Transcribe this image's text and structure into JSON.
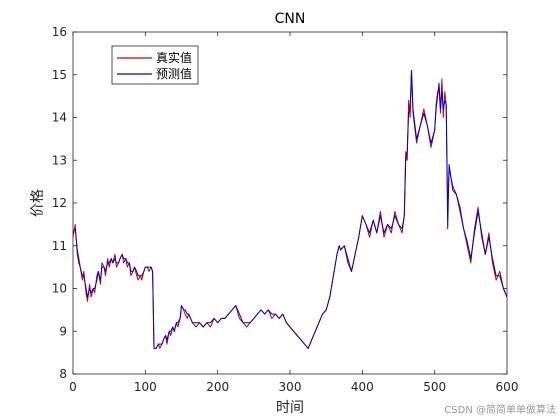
{
  "chart_data": {
    "type": "line",
    "title": "CNN",
    "xlabel": "时间",
    "ylabel": "价格",
    "xlim": [
      0,
      600
    ],
    "ylim": [
      8,
      16
    ],
    "xticks": [
      0,
      100,
      200,
      300,
      400,
      500,
      600
    ],
    "yticks": [
      8,
      9,
      10,
      11,
      12,
      13,
      14,
      15,
      16
    ],
    "grid": false,
    "legend_position": "top-left",
    "series": [
      {
        "name": "真实值",
        "color": "#c00000",
        "x": [
          0,
          3,
          6,
          8,
          10,
          13,
          15,
          18,
          20,
          23,
          25,
          28,
          30,
          33,
          35,
          38,
          40,
          43,
          45,
          48,
          50,
          53,
          55,
          58,
          60,
          63,
          65,
          68,
          70,
          73,
          75,
          78,
          80,
          83,
          85,
          88,
          90,
          93,
          95,
          98,
          100,
          103,
          105,
          108,
          110,
          112,
          115,
          118,
          120,
          123,
          125,
          128,
          130,
          133,
          135,
          138,
          140,
          143,
          145,
          148,
          150,
          153,
          155,
          158,
          160,
          165,
          170,
          175,
          180,
          185,
          190,
          195,
          200,
          205,
          210,
          215,
          220,
          225,
          230,
          235,
          240,
          245,
          250,
          255,
          260,
          265,
          270,
          275,
          280,
          285,
          290,
          295,
          300,
          305,
          310,
          315,
          320,
          325,
          330,
          335,
          340,
          345,
          350,
          355,
          360,
          365,
          368,
          370,
          375,
          380,
          385,
          390,
          395,
          400,
          405,
          410,
          415,
          420,
          425,
          430,
          435,
          440,
          445,
          450,
          455,
          458,
          460,
          462,
          464,
          466,
          468,
          470,
          475,
          480,
          485,
          490,
          495,
          500,
          502,
          504,
          506,
          508,
          510,
          512,
          514,
          516,
          518,
          520,
          525,
          530,
          535,
          540,
          545,
          550,
          555,
          560,
          565,
          570,
          575,
          580,
          585,
          590,
          595,
          600
        ],
        "values": [
          11.2,
          11.5,
          10.8,
          10.6,
          10.5,
          10.2,
          10.4,
          9.9,
          9.7,
          10.1,
          9.8,
          10.0,
          9.9,
          10.3,
          10.4,
          10.1,
          10.6,
          10.5,
          10.3,
          10.7,
          10.5,
          10.7,
          10.6,
          10.8,
          10.5,
          10.6,
          10.7,
          10.8,
          10.6,
          10.7,
          10.5,
          10.6,
          10.3,
          10.4,
          10.5,
          10.3,
          10.2,
          10.3,
          10.2,
          10.4,
          10.5,
          10.5,
          10.4,
          10.5,
          10.4,
          8.6,
          8.6,
          8.7,
          8.6,
          8.7,
          8.8,
          8.9,
          8.7,
          9.0,
          8.9,
          9.1,
          9.0,
          9.2,
          9.1,
          9.3,
          9.6,
          9.5,
          9.4,
          9.3,
          9.4,
          9.2,
          9.1,
          9.2,
          9.1,
          9.2,
          9.1,
          9.3,
          9.2,
          9.3,
          9.3,
          9.4,
          9.5,
          9.6,
          9.3,
          9.2,
          9.1,
          9.2,
          9.3,
          9.4,
          9.5,
          9.4,
          9.5,
          9.3,
          9.4,
          9.3,
          9.4,
          9.2,
          9.1,
          9.0,
          8.9,
          8.8,
          8.7,
          8.6,
          8.8,
          9.0,
          9.2,
          9.4,
          9.5,
          9.8,
          10.3,
          10.8,
          11.0,
          10.9,
          11.0,
          10.6,
          10.4,
          10.8,
          11.2,
          11.7,
          11.5,
          11.2,
          11.6,
          11.3,
          11.8,
          11.2,
          11.5,
          11.3,
          11.8,
          11.5,
          11.3,
          11.7,
          13.2,
          13.0,
          14.4,
          14.0,
          15.1,
          14.1,
          13.4,
          13.8,
          14.2,
          13.8,
          13.3,
          13.7,
          14.3,
          14.6,
          14.7,
          14.1,
          14.9,
          14.0,
          14.6,
          14.3,
          11.8,
          12.8,
          12.4,
          12.2,
          11.8,
          11.4,
          11.0,
          10.6,
          11.4,
          11.9,
          11.2,
          10.8,
          11.3,
          10.6,
          10.2,
          10.4,
          10.0,
          9.8
        ]
      },
      {
        "name": "预测值",
        "color": "#0000cc",
        "x": [
          0,
          3,
          6,
          8,
          10,
          13,
          15,
          18,
          20,
          23,
          25,
          28,
          30,
          33,
          35,
          38,
          40,
          43,
          45,
          48,
          50,
          53,
          55,
          58,
          60,
          63,
          65,
          68,
          70,
          73,
          75,
          78,
          80,
          83,
          85,
          88,
          90,
          93,
          95,
          98,
          100,
          103,
          105,
          108,
          110,
          112,
          115,
          118,
          120,
          123,
          125,
          128,
          130,
          133,
          135,
          138,
          140,
          143,
          145,
          148,
          150,
          153,
          155,
          158,
          160,
          165,
          170,
          175,
          180,
          185,
          190,
          195,
          200,
          205,
          210,
          215,
          220,
          225,
          230,
          235,
          240,
          245,
          250,
          255,
          260,
          265,
          270,
          275,
          280,
          285,
          290,
          295,
          300,
          305,
          310,
          315,
          320,
          325,
          330,
          335,
          340,
          345,
          350,
          355,
          360,
          365,
          368,
          370,
          375,
          380,
          385,
          390,
          395,
          400,
          405,
          410,
          415,
          420,
          425,
          430,
          435,
          440,
          445,
          450,
          455,
          458,
          460,
          462,
          464,
          466,
          468,
          470,
          475,
          480,
          485,
          490,
          495,
          500,
          502,
          504,
          506,
          508,
          510,
          512,
          514,
          516,
          518,
          520,
          525,
          530,
          535,
          540,
          545,
          550,
          555,
          560,
          565,
          570,
          575,
          580,
          585,
          590,
          595,
          600
        ],
        "values": [
          11.3,
          11.4,
          10.9,
          10.7,
          10.5,
          10.3,
          10.3,
          10.0,
          9.8,
          10.0,
          9.9,
          10.0,
          10.0,
          10.2,
          10.4,
          10.2,
          10.5,
          10.5,
          10.4,
          10.6,
          10.6,
          10.7,
          10.6,
          10.7,
          10.6,
          10.6,
          10.7,
          10.8,
          10.7,
          10.7,
          10.6,
          10.6,
          10.4,
          10.4,
          10.5,
          10.4,
          10.3,
          10.3,
          10.3,
          10.4,
          10.5,
          10.5,
          10.5,
          10.5,
          10.4,
          8.6,
          8.6,
          8.7,
          8.7,
          8.7,
          8.8,
          8.9,
          8.8,
          9.0,
          9.0,
          9.1,
          9.0,
          9.2,
          9.2,
          9.3,
          9.6,
          9.5,
          9.5,
          9.4,
          9.4,
          9.2,
          9.2,
          9.2,
          9.1,
          9.2,
          9.2,
          9.3,
          9.2,
          9.3,
          9.3,
          9.4,
          9.5,
          9.6,
          9.4,
          9.2,
          9.2,
          9.2,
          9.3,
          9.4,
          9.5,
          9.4,
          9.5,
          9.4,
          9.4,
          9.3,
          9.4,
          9.2,
          9.1,
          9.0,
          8.9,
          8.8,
          8.7,
          8.6,
          8.8,
          9.0,
          9.2,
          9.4,
          9.5,
          9.8,
          10.3,
          10.8,
          11.0,
          10.9,
          11.0,
          10.7,
          10.4,
          10.8,
          11.2,
          11.7,
          11.5,
          11.3,
          11.6,
          11.3,
          11.7,
          11.3,
          11.5,
          11.4,
          11.7,
          11.5,
          11.4,
          11.7,
          13.0,
          13.2,
          14.1,
          14.2,
          15.1,
          14.2,
          13.5,
          13.8,
          14.1,
          13.8,
          13.4,
          13.7,
          14.2,
          14.5,
          14.8,
          14.2,
          14.6,
          14.2,
          14.4,
          14.3,
          11.4,
          12.9,
          12.3,
          12.2,
          11.9,
          11.4,
          11.1,
          10.7,
          11.3,
          11.8,
          11.3,
          10.8,
          11.2,
          10.7,
          10.3,
          10.3,
          10.0,
          9.8
        ]
      }
    ]
  },
  "watermark": "CSDN @简简单单做算法"
}
